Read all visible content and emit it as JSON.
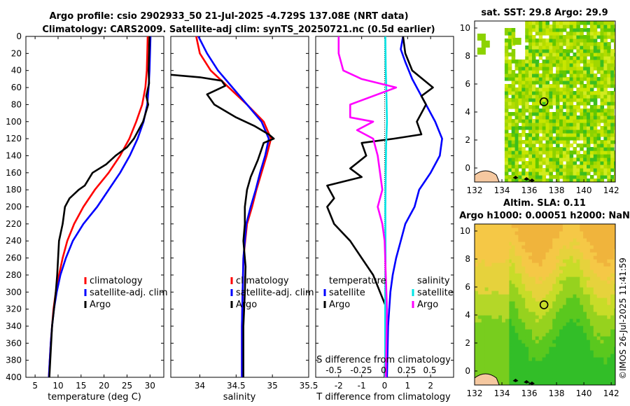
{
  "title_line1": "Argo profile: csio 2902933_50 21-Jul-2025 -4.729S 137.08E (NRT data)",
  "title_line2": "Climatology: CARS2009. Satellite-adj clim: synTS_20250721.nc (0.5d earlier)",
  "watermark": "©IMOS 26-Jul-2025 11:41:59",
  "colors": {
    "climatology": "#ff0000",
    "satellite": "#0000ff",
    "argo": "#000000",
    "s_satellite": "#00e5e5",
    "s_argo": "#ff00ff",
    "land": "#f5c8a0",
    "sst_green": "#7ed321"
  },
  "chart_data": [
    {
      "type": "line",
      "name": "temperature",
      "xlabel": "temperature (deg C)",
      "xlim": [
        3,
        33
      ],
      "ylim": [
        0,
        400
      ],
      "xticks": [
        5,
        10,
        15,
        20,
        25,
        30
      ],
      "yticks": [
        0,
        20,
        40,
        60,
        80,
        100,
        120,
        140,
        160,
        180,
        200,
        220,
        240,
        260,
        280,
        300,
        320,
        340,
        360,
        380,
        400
      ],
      "legend": [
        "climatology",
        "satellite-adj. clim",
        "Argo"
      ],
      "series": [
        {
          "name": "climatology",
          "color": "#ff0000",
          "points": [
            [
              29.5,
              0
            ],
            [
              29.4,
              20
            ],
            [
              29.3,
              40
            ],
            [
              29.0,
              60
            ],
            [
              28.3,
              80
            ],
            [
              27,
              100
            ],
            [
              25.5,
              120
            ],
            [
              23.5,
              140
            ],
            [
              21,
              160
            ],
            [
              18,
              180
            ],
            [
              15.5,
              200
            ],
            [
              13.5,
              220
            ],
            [
              12,
              240
            ],
            [
              11,
              260
            ],
            [
              10.2,
              280
            ],
            [
              9.5,
              300
            ],
            [
              9,
              320
            ],
            [
              8.7,
              340
            ],
            [
              8.4,
              360
            ],
            [
              8.2,
              380
            ],
            [
              8.0,
              400
            ]
          ]
        },
        {
          "name": "satellite-adj. clim",
          "color": "#0000ff",
          "points": [
            [
              30.1,
              0
            ],
            [
              30.0,
              20
            ],
            [
              29.9,
              40
            ],
            [
              29.7,
              60
            ],
            [
              29.4,
              80
            ],
            [
              28.6,
              100
            ],
            [
              27.3,
              120
            ],
            [
              25.6,
              140
            ],
            [
              23.5,
              160
            ],
            [
              21,
              180
            ],
            [
              18.5,
              200
            ],
            [
              15.5,
              220
            ],
            [
              13.2,
              240
            ],
            [
              11.7,
              260
            ],
            [
              10.5,
              280
            ],
            [
              9.7,
              300
            ],
            [
              9.1,
              320
            ],
            [
              8.7,
              340
            ],
            [
              8.4,
              360
            ],
            [
              8.2,
              380
            ],
            [
              8.0,
              400
            ]
          ]
        },
        {
          "name": "Argo",
          "color": "#000000",
          "points": [
            [
              29.9,
              0
            ],
            [
              29.8,
              20
            ],
            [
              29.7,
              40
            ],
            [
              29.8,
              55
            ],
            [
              29.2,
              70
            ],
            [
              29.6,
              80
            ],
            [
              28.5,
              100
            ],
            [
              26.5,
              120
            ],
            [
              25.0,
              130
            ],
            [
              22.5,
              140
            ],
            [
              20.5,
              150
            ],
            [
              17.5,
              160
            ],
            [
              15.8,
              175
            ],
            [
              14.5,
              180
            ],
            [
              12.5,
              190
            ],
            [
              11.5,
              200
            ],
            [
              11.0,
              220
            ],
            [
              10.2,
              240
            ],
            [
              10.0,
              260
            ],
            [
              9.8,
              280
            ],
            [
              9.5,
              300
            ],
            [
              9.1,
              320
            ],
            [
              8.7,
              340
            ],
            [
              8.5,
              360
            ],
            [
              8.3,
              380
            ],
            [
              8.1,
              400
            ]
          ]
        }
      ]
    },
    {
      "type": "line",
      "name": "salinity",
      "xlabel": "salinity",
      "xlim": [
        33.6,
        35.5
      ],
      "ylim": [
        0,
        400
      ],
      "xticks": [
        34,
        34.5,
        35,
        35.5
      ],
      "legend": [
        "climatology",
        "satellite-adj. clim",
        "Argo"
      ],
      "series": [
        {
          "name": "climatology",
          "color": "#ff0000",
          "points": [
            [
              33.95,
              0
            ],
            [
              34.0,
              20
            ],
            [
              34.15,
              40
            ],
            [
              34.4,
              60
            ],
            [
              34.65,
              80
            ],
            [
              34.88,
              100
            ],
            [
              34.98,
              120
            ],
            [
              34.92,
              140
            ],
            [
              34.85,
              160
            ],
            [
              34.78,
              180
            ],
            [
              34.72,
              200
            ],
            [
              34.65,
              220
            ],
            [
              34.6,
              260
            ],
            [
              34.59,
              300
            ],
            [
              34.58,
              340
            ],
            [
              34.58,
              400
            ]
          ]
        },
        {
          "name": "satellite-adj. clim",
          "color": "#0000ff",
          "points": [
            [
              33.98,
              0
            ],
            [
              34.1,
              20
            ],
            [
              34.25,
              40
            ],
            [
              34.45,
              60
            ],
            [
              34.65,
              80
            ],
            [
              34.85,
              100
            ],
            [
              34.95,
              120
            ],
            [
              34.9,
              140
            ],
            [
              34.83,
              160
            ],
            [
              34.77,
              180
            ],
            [
              34.7,
              200
            ],
            [
              34.64,
              220
            ],
            [
              34.6,
              260
            ],
            [
              34.59,
              300
            ],
            [
              34.58,
              340
            ],
            [
              34.58,
              400
            ]
          ]
        },
        {
          "name": "Argo",
          "color": "#000000",
          "points": [
            [
              33.6,
              45
            ],
            [
              34.0,
              48
            ],
            [
              34.3,
              52
            ],
            [
              34.35,
              58
            ],
            [
              34.1,
              68
            ],
            [
              34.2,
              80
            ],
            [
              34.5,
              95
            ],
            [
              34.75,
              105
            ],
            [
              34.95,
              115
            ],
            [
              35.02,
              120
            ],
            [
              34.88,
              125
            ],
            [
              34.8,
              145
            ],
            [
              34.7,
              165
            ],
            [
              34.65,
              180
            ],
            [
              34.62,
              200
            ],
            [
              34.62,
              220
            ],
            [
              34.6,
              240
            ],
            [
              34.63,
              270
            ],
            [
              34.62,
              300
            ],
            [
              34.6,
              340
            ],
            [
              34.6,
              400
            ]
          ]
        }
      ]
    },
    {
      "type": "line",
      "name": "difference",
      "xlabel": "T difference from climatology",
      "xlabel_top": "S difference from climatology",
      "xlim": [
        -3,
        3
      ],
      "ylim": [
        0,
        400
      ],
      "xticks": [
        -2,
        -1,
        0,
        1,
        2
      ],
      "xticks_s_labels": [
        "-0.5",
        "-0.25",
        "0",
        "0.25",
        "0.5"
      ],
      "legend_left_title": "temperature",
      "legend_left": [
        "satellite",
        "Argo"
      ],
      "legend_right_title": "salinity",
      "legend_right": [
        "satellite",
        "Argo"
      ],
      "series": [
        {
          "name": "T satellite",
          "color": "#0000ff",
          "points": [
            [
              0.8,
              0
            ],
            [
              0.7,
              15
            ],
            [
              0.9,
              30
            ],
            [
              1.2,
              50
            ],
            [
              1.8,
              80
            ],
            [
              2.2,
              100
            ],
            [
              2.5,
              120
            ],
            [
              2.4,
              140
            ],
            [
              2.0,
              160
            ],
            [
              1.5,
              180
            ],
            [
              1.3,
              200
            ],
            [
              0.9,
              220
            ],
            [
              0.7,
              240
            ],
            [
              0.5,
              260
            ],
            [
              0.35,
              280
            ],
            [
              0.25,
              300
            ],
            [
              0.15,
              340
            ],
            [
              0.1,
              400
            ]
          ]
        },
        {
          "name": "T Argo",
          "color": "#000000",
          "points": [
            [
              0.8,
              0
            ],
            [
              0.9,
              20
            ],
            [
              1.2,
              40
            ],
            [
              2.1,
              60
            ],
            [
              1.6,
              70
            ],
            [
              1.8,
              80
            ],
            [
              1.4,
              100
            ],
            [
              1.6,
              115
            ],
            [
              0.4,
              120
            ],
            [
              -1,
              125
            ],
            [
              -0.8,
              140
            ],
            [
              -1.5,
              155
            ],
            [
              -1.0,
              165
            ],
            [
              -2.5,
              175
            ],
            [
              -2.2,
              190
            ],
            [
              -2.5,
              200
            ],
            [
              -2.2,
              220
            ],
            [
              -1.5,
              240
            ],
            [
              -1.0,
              260
            ],
            [
              -0.5,
              280
            ],
            [
              -0.2,
              300
            ],
            [
              0.1,
              320
            ],
            [
              0.05,
              360
            ],
            [
              0.0,
              400
            ]
          ]
        },
        {
          "name": "S satellite",
          "color": "#00e5e5",
          "points": [
            [
              0.03,
              0
            ],
            [
              0.05,
              40
            ],
            [
              0.08,
              70
            ],
            [
              0.1,
              100
            ],
            [
              0.06,
              130
            ],
            [
              0.05,
              160
            ],
            [
              0.03,
              200
            ],
            [
              0.04,
              260
            ],
            [
              0.02,
              320
            ],
            [
              0.02,
              400
            ]
          ]
        },
        {
          "name": "S Argo",
          "color": "#ff00ff",
          "points": [
            [
              -2.0,
              0
            ],
            [
              -2.0,
              20
            ],
            [
              -1.8,
              40
            ],
            [
              -1.0,
              50
            ],
            [
              0.5,
              60
            ],
            [
              -1.5,
              80
            ],
            [
              -1.5,
              95
            ],
            [
              -0.5,
              100
            ],
            [
              -1.2,
              110
            ],
            [
              -0.5,
              120
            ],
            [
              -0.3,
              140
            ],
            [
              -0.2,
              160
            ],
            [
              -0.1,
              180
            ],
            [
              -0.3,
              200
            ],
            [
              -0.1,
              220
            ],
            [
              0.0,
              240
            ],
            [
              0.05,
              280
            ],
            [
              0.1,
              320
            ],
            [
              0.05,
              400
            ]
          ]
        }
      ]
    },
    {
      "type": "heatmap",
      "name": "sst_map",
      "title": "sat. SST: 29.8 Argo: 29.9",
      "xlim": [
        132,
        142.3
      ],
      "ylim": [
        -1,
        10.5
      ],
      "xticks": [
        132,
        134,
        136,
        138,
        140,
        142
      ],
      "yticks": [
        0,
        2,
        4,
        6,
        8,
        10
      ],
      "marker": {
        "lon": 137.08,
        "lat": 4.729
      }
    },
    {
      "type": "heatmap",
      "name": "sla_map",
      "title": "Altim. SLA: 0.11",
      "subtitle": "Argo h1000: 0.00051 h2000: NaN",
      "xlim": [
        132,
        142.3
      ],
      "ylim": [
        -1,
        10.5
      ],
      "xticks": [
        132,
        134,
        136,
        138,
        140,
        142
      ],
      "yticks": [
        0,
        2,
        4,
        6,
        8,
        10
      ],
      "marker": {
        "lon": 137.08,
        "lat": 4.729
      }
    }
  ]
}
